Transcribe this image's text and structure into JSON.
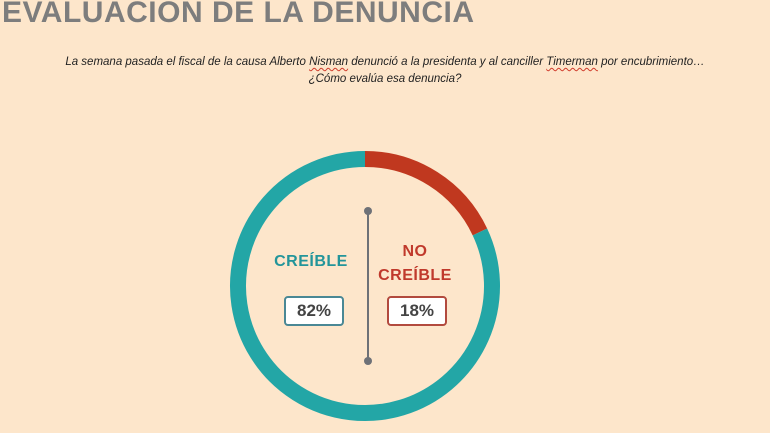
{
  "header": {
    "title": "EVALUACIÓN DE LA DENUNCIA"
  },
  "question": {
    "part1": "La semana pasada el fiscal de la causa Alberto ",
    "name1": "Nisman",
    "part2": " denunció a la presidenta y al canciller ",
    "name2": "Timerman",
    "part3": " por encubrimiento… ¿Cómo evalúa esa denuncia?"
  },
  "chart_data": {
    "type": "pie",
    "title": "EVALUACIÓN DE LA DENUNCIA",
    "categories": [
      "CREÍBLE",
      "NO CREÍBLE"
    ],
    "values": [
      82,
      18
    ],
    "labels": {
      "yes": "CREÍBLE",
      "no_line1": "NO",
      "no_line2": "CREÍBLE"
    },
    "value_labels": [
      "82%",
      "18%"
    ],
    "colors": [
      "#23a6a6",
      "#c0381f"
    ]
  }
}
